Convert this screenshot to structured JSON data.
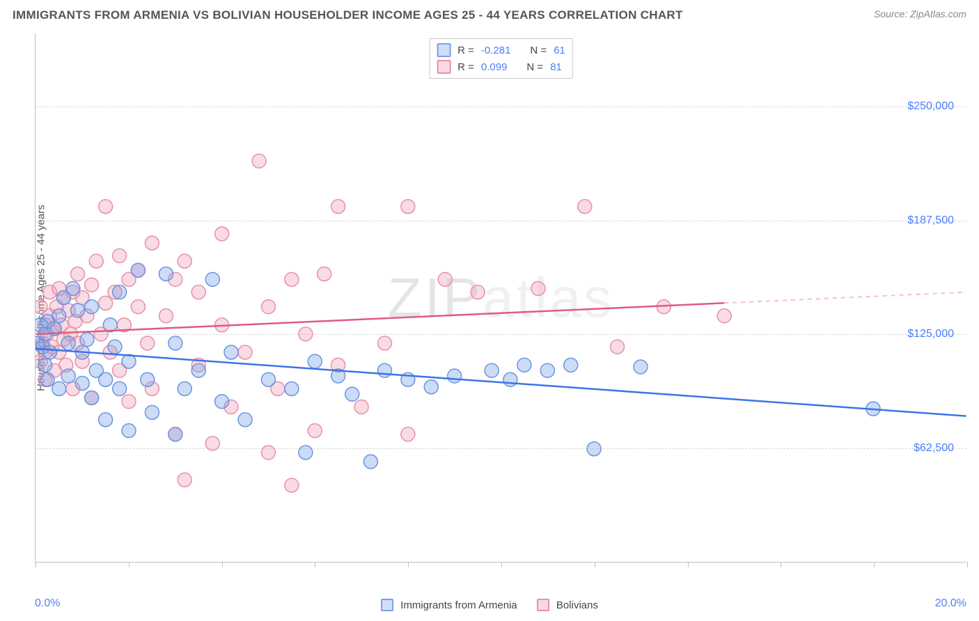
{
  "header": {
    "title": "IMMIGRANTS FROM ARMENIA VS BOLIVIAN HOUSEHOLDER INCOME AGES 25 - 44 YEARS CORRELATION CHART",
    "source_prefix": "Source: ",
    "source_name": "ZipAtlas.com"
  },
  "watermark": "ZIPatlas",
  "chart": {
    "type": "scatter",
    "background_color": "#ffffff",
    "grid_color": "#d8d8d8",
    "border_color": "#bfbfbf",
    "xlim": [
      0,
      20
    ],
    "ylim": [
      0,
      290000
    ],
    "x_label_min": "0.0%",
    "x_label_max": "20.0%",
    "xtick_positions": [
      0,
      2,
      4,
      6,
      8,
      10,
      12,
      14,
      16,
      18,
      20
    ],
    "ytick_values": [
      62500,
      125000,
      187500,
      250000
    ],
    "ytick_labels": [
      "$62,500",
      "$125,000",
      "$187,500",
      "$250,000"
    ],
    "y_axis_title": "Householder Income Ages 25 - 44 years",
    "label_color": "#4a7dff",
    "label_fontsize": 16,
    "title_color": "#555555",
    "axis_title_color": "#555555",
    "marker_radius": 10,
    "marker_opacity": 0.38
  },
  "series": {
    "armenia": {
      "label": "Immigrants from Armenia",
      "R": "-0.281",
      "N": "61",
      "fill": "#7aa0e8",
      "stroke": "#6a94e2",
      "trend_color": "#3b74e8",
      "trend_dash_color": "#a8c0f0",
      "trend": {
        "x1": 0,
        "y1": 117000,
        "x2": 20,
        "y2": 80000,
        "solid_until_x": 20
      },
      "points": [
        [
          0.05,
          120000
        ],
        [
          0.1,
          130000
        ],
        [
          0.15,
          118000
        ],
        [
          0.2,
          108000
        ],
        [
          0.2,
          125000
        ],
        [
          0.25,
          100000
        ],
        [
          0.25,
          132000
        ],
        [
          0.3,
          115000
        ],
        [
          0.4,
          128000
        ],
        [
          0.5,
          95000
        ],
        [
          0.5,
          135000
        ],
        [
          0.6,
          145000
        ],
        [
          0.7,
          102000
        ],
        [
          0.7,
          120000
        ],
        [
          0.8,
          150000
        ],
        [
          0.9,
          138000
        ],
        [
          1.0,
          98000
        ],
        [
          1.0,
          115000
        ],
        [
          1.1,
          122000
        ],
        [
          1.2,
          90000
        ],
        [
          1.2,
          140000
        ],
        [
          1.3,
          105000
        ],
        [
          1.5,
          78000
        ],
        [
          1.5,
          100000
        ],
        [
          1.6,
          130000
        ],
        [
          1.7,
          118000
        ],
        [
          1.8,
          95000
        ],
        [
          1.8,
          148000
        ],
        [
          2.0,
          72000
        ],
        [
          2.0,
          110000
        ],
        [
          2.2,
          160000
        ],
        [
          2.4,
          100000
        ],
        [
          2.5,
          82000
        ],
        [
          2.8,
          158000
        ],
        [
          3.0,
          70000
        ],
        [
          3.0,
          120000
        ],
        [
          3.2,
          95000
        ],
        [
          3.5,
          105000
        ],
        [
          3.8,
          155000
        ],
        [
          4.0,
          88000
        ],
        [
          4.2,
          115000
        ],
        [
          4.5,
          78000
        ],
        [
          5.0,
          100000
        ],
        [
          5.5,
          95000
        ],
        [
          5.8,
          60000
        ],
        [
          6.0,
          110000
        ],
        [
          6.5,
          102000
        ],
        [
          6.8,
          92000
        ],
        [
          7.2,
          55000
        ],
        [
          7.5,
          105000
        ],
        [
          8.0,
          100000
        ],
        [
          8.5,
          96000
        ],
        [
          9.0,
          102000
        ],
        [
          9.8,
          105000
        ],
        [
          10.2,
          100000
        ],
        [
          10.5,
          108000
        ],
        [
          11.0,
          105000
        ],
        [
          11.5,
          108000
        ],
        [
          12.0,
          62000
        ],
        [
          13.0,
          107000
        ],
        [
          18.0,
          84000
        ]
      ]
    },
    "bolivians": {
      "label": "Bolivians",
      "R": "0.099",
      "N": "81",
      "fill": "#f0a0b5",
      "stroke": "#e890a8",
      "trend_color": "#e05a80",
      "trend_dash_color": "#f5c0cc",
      "trend": {
        "x1": 0,
        "y1": 125000,
        "x2": 20,
        "y2": 148000,
        "solid_until_x": 14.8
      },
      "points": [
        [
          0.1,
          110000
        ],
        [
          0.1,
          140000
        ],
        [
          0.15,
          120000
        ],
        [
          0.2,
          100000
        ],
        [
          0.2,
          115000
        ],
        [
          0.2,
          130000
        ],
        [
          0.25,
          125000
        ],
        [
          0.3,
          135000
        ],
        [
          0.3,
          148000
        ],
        [
          0.35,
          118000
        ],
        [
          0.4,
          105000
        ],
        [
          0.4,
          128000
        ],
        [
          0.45,
          140000
        ],
        [
          0.5,
          150000
        ],
        [
          0.5,
          115000
        ],
        [
          0.55,
          130000
        ],
        [
          0.6,
          145000
        ],
        [
          0.6,
          122000
        ],
        [
          0.65,
          108000
        ],
        [
          0.7,
          138000
        ],
        [
          0.75,
          125000
        ],
        [
          0.8,
          148000
        ],
        [
          0.8,
          95000
        ],
        [
          0.85,
          132000
        ],
        [
          0.9,
          120000
        ],
        [
          0.9,
          158000
        ],
        [
          1.0,
          145000
        ],
        [
          1.0,
          110000
        ],
        [
          1.1,
          135000
        ],
        [
          1.2,
          152000
        ],
        [
          1.2,
          90000
        ],
        [
          1.3,
          165000
        ],
        [
          1.4,
          125000
        ],
        [
          1.5,
          142000
        ],
        [
          1.5,
          195000
        ],
        [
          1.6,
          115000
        ],
        [
          1.7,
          148000
        ],
        [
          1.8,
          105000
        ],
        [
          1.8,
          168000
        ],
        [
          1.9,
          130000
        ],
        [
          2.0,
          88000
        ],
        [
          2.0,
          155000
        ],
        [
          2.2,
          140000
        ],
        [
          2.2,
          160000
        ],
        [
          2.4,
          120000
        ],
        [
          2.5,
          175000
        ],
        [
          2.5,
          95000
        ],
        [
          2.8,
          135000
        ],
        [
          3.0,
          155000
        ],
        [
          3.0,
          70000
        ],
        [
          3.2,
          165000
        ],
        [
          3.2,
          45000
        ],
        [
          3.5,
          148000
        ],
        [
          3.5,
          108000
        ],
        [
          3.8,
          65000
        ],
        [
          4.0,
          130000
        ],
        [
          4.0,
          180000
        ],
        [
          4.2,
          85000
        ],
        [
          4.5,
          115000
        ],
        [
          4.8,
          220000
        ],
        [
          5.0,
          140000
        ],
        [
          5.0,
          60000
        ],
        [
          5.2,
          95000
        ],
        [
          5.5,
          155000
        ],
        [
          5.5,
          42000
        ],
        [
          5.8,
          125000
        ],
        [
          6.0,
          72000
        ],
        [
          6.2,
          158000
        ],
        [
          6.5,
          195000
        ],
        [
          6.5,
          108000
        ],
        [
          7.0,
          85000
        ],
        [
          7.5,
          120000
        ],
        [
          8.0,
          195000
        ],
        [
          8.0,
          70000
        ],
        [
          8.8,
          155000
        ],
        [
          9.5,
          148000
        ],
        [
          10.8,
          150000
        ],
        [
          11.8,
          195000
        ],
        [
          12.5,
          118000
        ],
        [
          13.5,
          140000
        ],
        [
          14.8,
          135000
        ]
      ]
    }
  },
  "legend_top": {
    "r_label": "R =",
    "n_label": "N ="
  }
}
